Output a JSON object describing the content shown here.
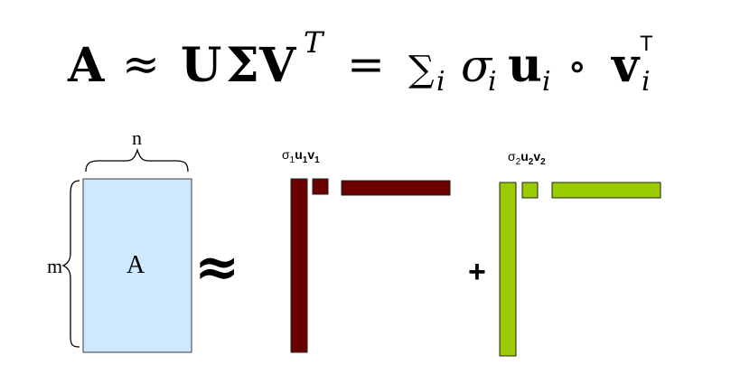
{
  "equation": {
    "A": "A",
    "approx": "≈",
    "U": "U",
    "Sigma": "Σ",
    "V": "V",
    "sup_T": "T",
    "equals": "=",
    "sum": "∑",
    "sub_i": "i",
    "sigma": "σ",
    "u": "u",
    "circ": "∘",
    "v": "v",
    "sup_T2": "T"
  },
  "matrix": {
    "label": "A",
    "rows_label": "m",
    "cols_label": "n",
    "fill": "#cce9ff",
    "border": "#3b3b3b"
  },
  "approx_symbol": "≈",
  "plus_symbol": "+",
  "components": [
    {
      "label_sigma": "σ",
      "label_sub1": "1",
      "label_u": "u",
      "label_sub2": "1",
      "label_v": "v",
      "label_sub3": "1",
      "color": "#6b0000"
    },
    {
      "label_sigma": "σ",
      "label_sub1": "2",
      "label_u": "u",
      "label_sub2": "2",
      "label_v": "v",
      "label_sub3": "2",
      "color": "#99cc00"
    }
  ]
}
